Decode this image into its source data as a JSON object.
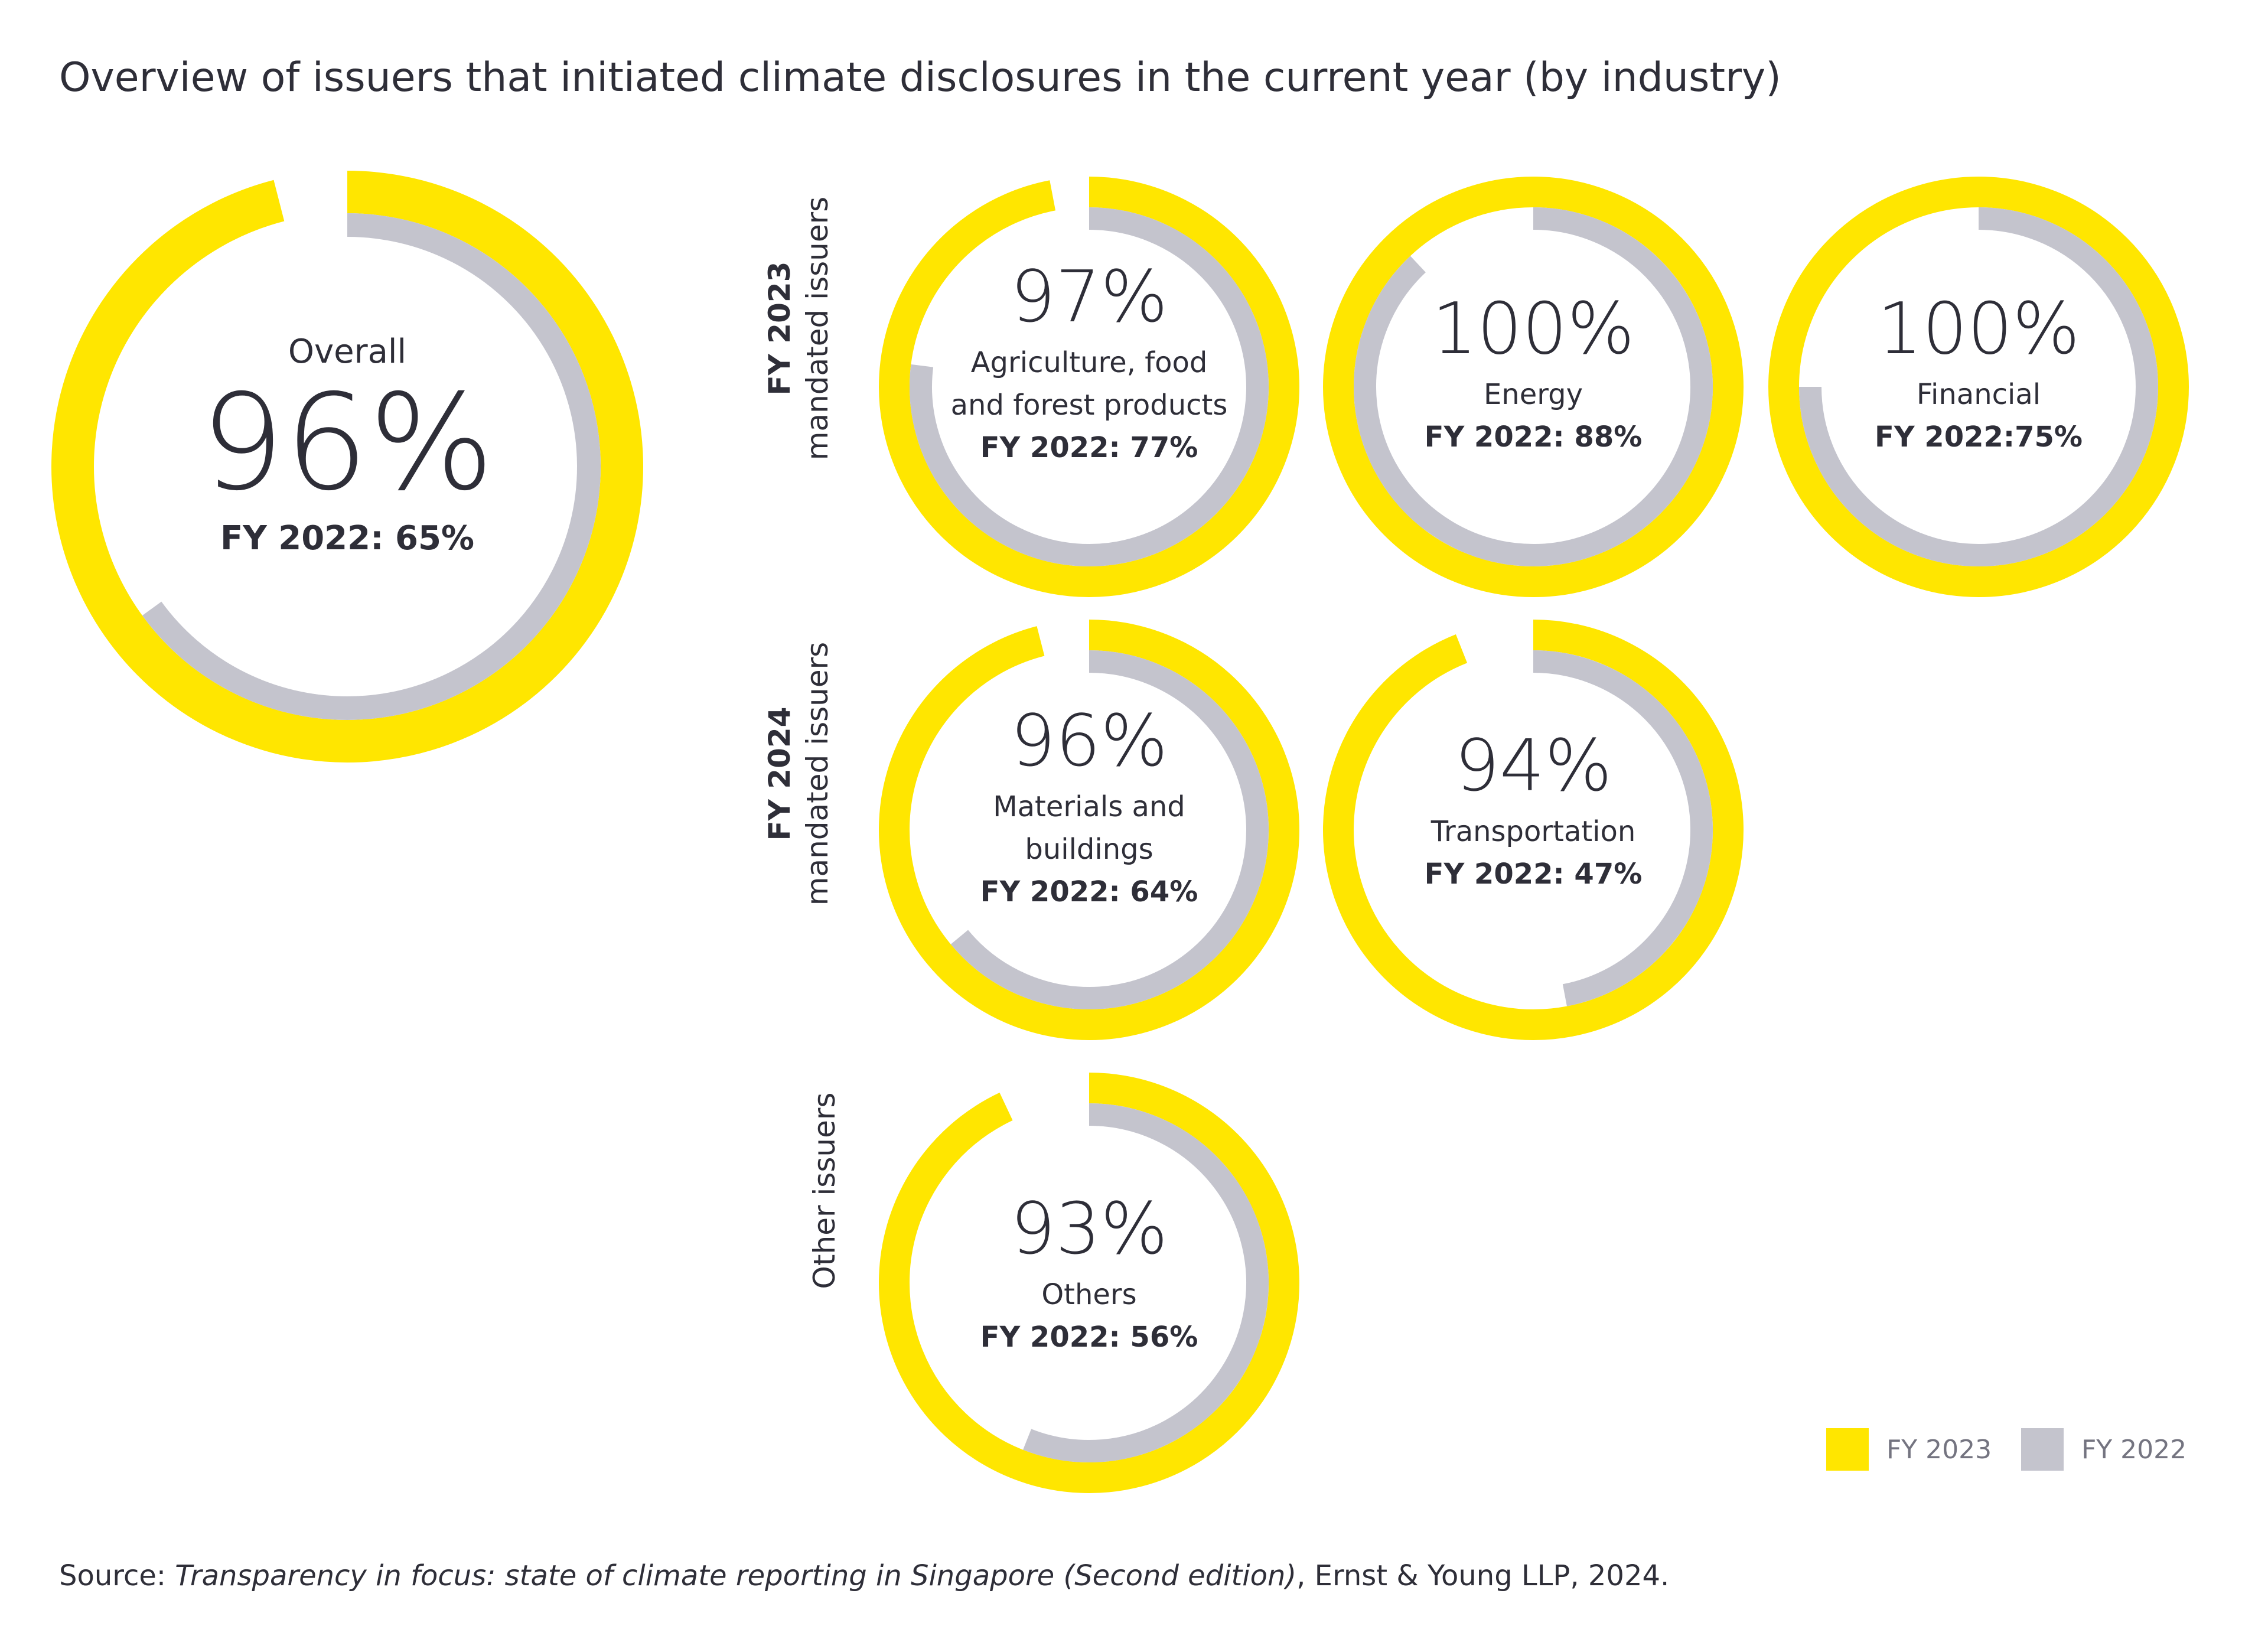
{
  "title": "Overview of issuers that initiated climate disclosures in the current year (by industry)",
  "colors": {
    "fy2023": "#ffe600",
    "fy2022": "#c4c4cd",
    "text": "#2e2e38"
  },
  "groups": {
    "fy2023": {
      "line1": "FY 2023",
      "line2": "mandated issuers"
    },
    "fy2024": {
      "line1": "FY 2024",
      "line2": "mandated issuers"
    },
    "other": {
      "line1": "Other issuers"
    }
  },
  "chart_data": {
    "type": "donut",
    "series_names": [
      "FY 2023",
      "FY 2022"
    ],
    "items": [
      {
        "key": "overall",
        "label_top": "Overall",
        "fy2023_label": "96%",
        "fy2022_label": "FY 2022: 65%",
        "fy2023": 96,
        "fy2022": 65
      },
      {
        "key": "agri",
        "industry_lines": [
          "Agriculture, food",
          "and forest products"
        ],
        "fy2023_label": "97%",
        "fy2022_label": "FY 2022: 77%",
        "fy2023": 97,
        "fy2022": 77
      },
      {
        "key": "energy",
        "industry_lines": [
          "Energy"
        ],
        "fy2023_label": "100%",
        "fy2022_label": "FY 2022: 88%",
        "fy2023": 100,
        "fy2022": 88
      },
      {
        "key": "financial",
        "industry_lines": [
          "Financial"
        ],
        "fy2023_label": "100%",
        "fy2022_label": "FY 2022:75%",
        "fy2023": 100,
        "fy2022": 75
      },
      {
        "key": "materials",
        "industry_lines": [
          "Materials and",
          "buildings"
        ],
        "fy2023_label": "96%",
        "fy2022_label": "FY 2022: 64%",
        "fy2023": 96,
        "fy2022": 64
      },
      {
        "key": "transport",
        "industry_lines": [
          "Transportation"
        ],
        "fy2023_label": "94%",
        "fy2022_label": "FY 2022: 47%",
        "fy2023": 94,
        "fy2022": 47
      },
      {
        "key": "others",
        "industry_lines": [
          "Others"
        ],
        "fy2023_label": "93%",
        "fy2022_label": "FY 2022: 56%",
        "fy2023": 93,
        "fy2022": 56
      }
    ]
  },
  "legend": {
    "fy2023": "FY 2023",
    "fy2022": "FY 2022"
  },
  "source": {
    "prefix": "Source: ",
    "italic": "Transparency in focus: state of climate reporting in Singapore (Second edition)",
    "suffix": ", Ernst & Young LLP, 2024."
  }
}
